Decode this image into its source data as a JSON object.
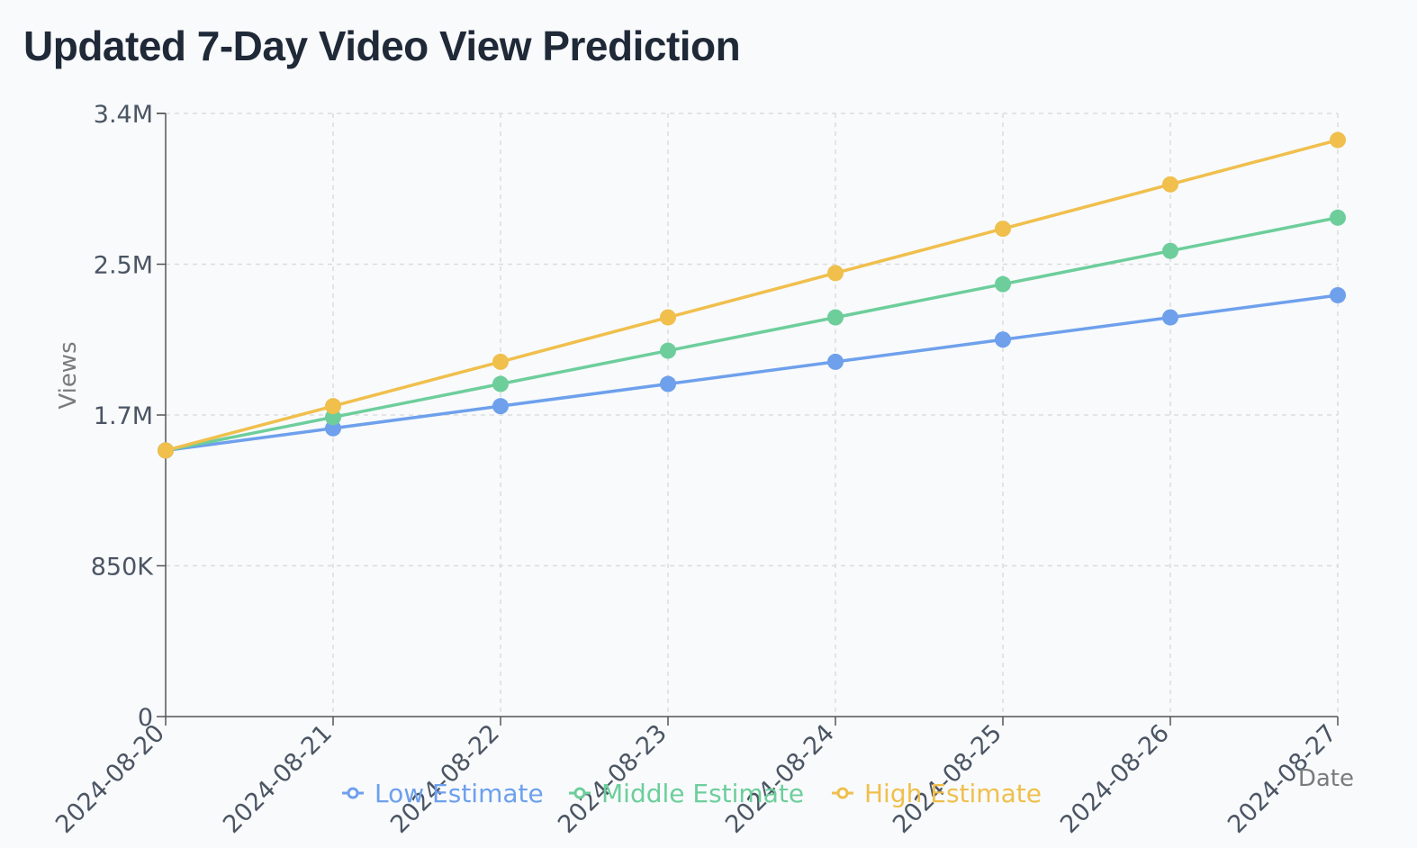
{
  "title": "Updated 7-Day Video View Prediction",
  "chart_data": {
    "type": "line",
    "title": "Updated 7-Day Video View Prediction",
    "xlabel": "Date",
    "ylabel": "Views",
    "categories": [
      "2024-08-20",
      "2024-08-21",
      "2024-08-22",
      "2024-08-23",
      "2024-08-24",
      "2024-08-25",
      "2024-08-26",
      "2024-08-27"
    ],
    "y_ticks": [
      0,
      850000,
      1700000,
      2550000,
      3400000
    ],
    "y_tick_labels": [
      "0",
      "850K",
      "1.7M",
      "2.5M",
      "3.4M"
    ],
    "ylim": [
      0,
      3400000
    ],
    "grid": true,
    "legend_position": "bottom-center",
    "series": [
      {
        "name": "Low Estimate",
        "color": "#6ea0ec",
        "values": [
          1500000,
          1625000,
          1750000,
          1875000,
          2000000,
          2125000,
          2250000,
          2375000
        ]
      },
      {
        "name": "Middle Estimate",
        "color": "#6dce9b",
        "values": [
          1500000,
          1687500,
          1875000,
          2062500,
          2250000,
          2437500,
          2625000,
          2812500
        ]
      },
      {
        "name": "High Estimate",
        "color": "#f0bf4c",
        "values": [
          1500000,
          1750000,
          2000000,
          2250000,
          2500000,
          2750000,
          3000000,
          3250000
        ]
      }
    ]
  }
}
